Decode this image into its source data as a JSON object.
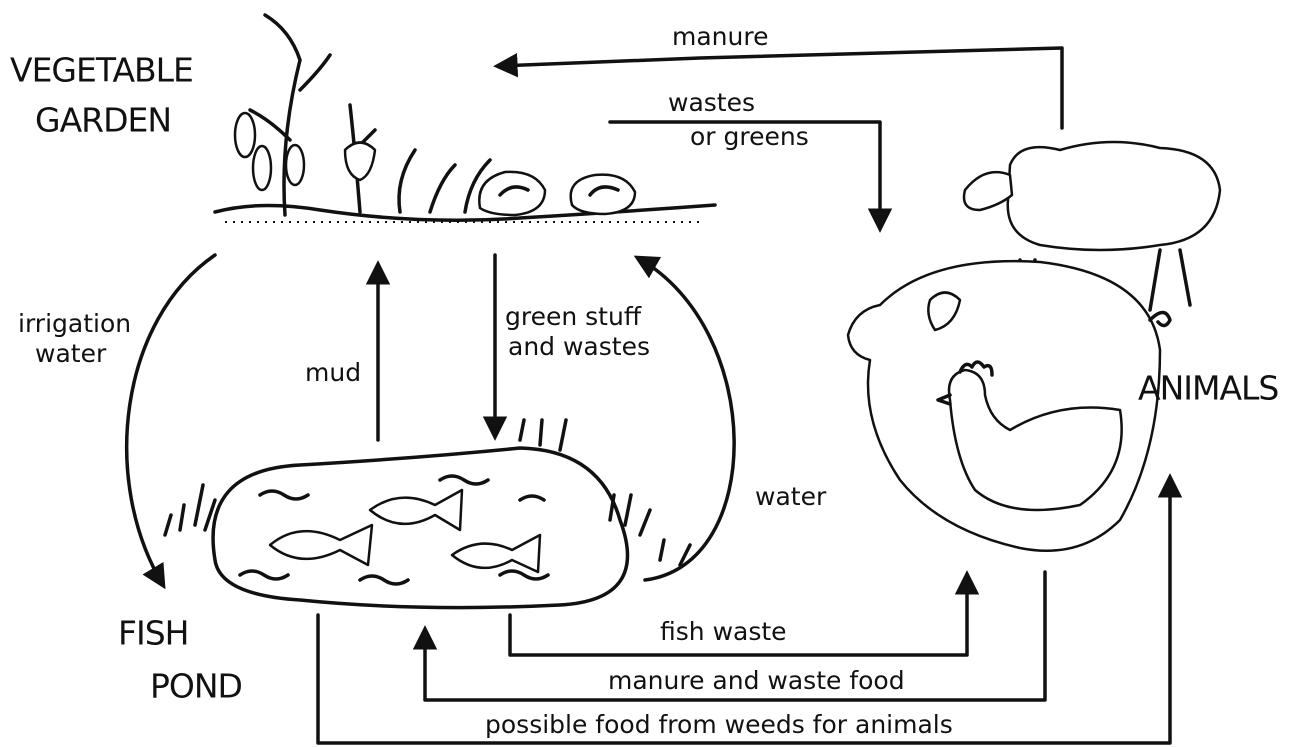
{
  "nodes": [
    {
      "lines": [
        "VEGETABLE",
        "GARDEN"
      ]
    },
    {
      "lines": [
        "FISH",
        "POND"
      ]
    },
    {
      "lines": [
        "ANIMALS"
      ]
    }
  ],
  "edges": [
    {
      "lines": [
        "manure"
      ]
    },
    {
      "lines": [
        "wastes",
        "or greens"
      ]
    },
    {
      "lines": [
        "irrigation",
        "water"
      ]
    },
    {
      "lines": [
        "mud"
      ]
    },
    {
      "lines": [
        "green stuff",
        "and wastes"
      ]
    },
    {
      "lines": [
        "water"
      ]
    },
    {
      "lines": [
        "fish waste"
      ]
    },
    {
      "lines": [
        "manure and waste food"
      ]
    },
    {
      "lines": [
        "possible food from weeds for animals"
      ]
    }
  ]
}
